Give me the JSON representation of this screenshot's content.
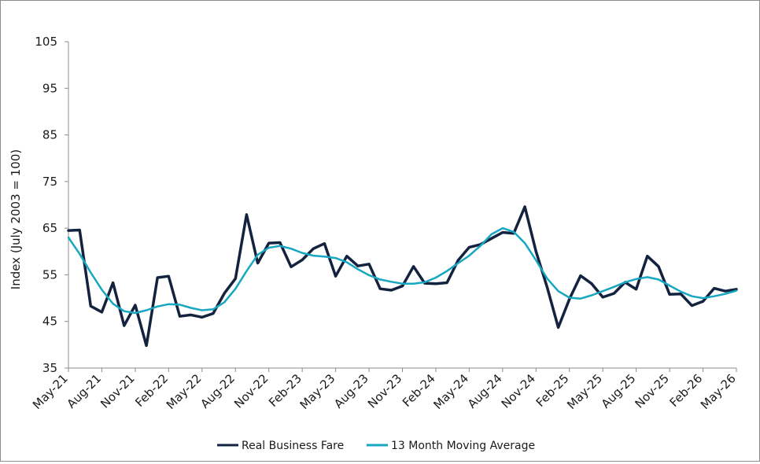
{
  "chart_data": {
    "type": "line",
    "title": "",
    "xlabel": "",
    "ylabel": "Index (July 2003 = 100)",
    "ylim": [
      35,
      105
    ],
    "y_ticks": [
      35,
      45,
      55,
      65,
      75,
      85,
      95,
      105
    ],
    "x_ticks": [
      "May-21",
      "Aug-21",
      "Nov-21",
      "Feb-22",
      "May-22",
      "Aug-22",
      "Nov-22",
      "Feb-23",
      "May-23",
      "Aug-23",
      "Nov-23",
      "Feb-24",
      "May-24",
      "Aug-24",
      "Nov-24",
      "Feb-25",
      "May-25",
      "Aug-25",
      "Nov-25",
      "Feb-26",
      "May-26"
    ],
    "grid": false,
    "legend_position": "bottom",
    "categories": [
      "May-21",
      "Jun-21",
      "Jul-21",
      "Aug-21",
      "Sep-21",
      "Oct-21",
      "Nov-21",
      "Dec-21",
      "Jan-22",
      "Feb-22",
      "Mar-22",
      "Apr-22",
      "May-22",
      "Jun-22",
      "Jul-22",
      "Aug-22",
      "Sep-22",
      "Oct-22",
      "Nov-22",
      "Dec-22",
      "Jan-23",
      "Feb-23",
      "Mar-23",
      "Apr-23",
      "May-23",
      "Jun-23",
      "Jul-23",
      "Aug-23",
      "Sep-23",
      "Oct-23",
      "Nov-23",
      "Dec-23",
      "Jan-24",
      "Feb-24",
      "Mar-24",
      "Apr-24",
      "May-24",
      "Jun-24",
      "Jul-24",
      "Aug-24",
      "Sep-24",
      "Oct-24",
      "Nov-24",
      "Dec-24",
      "Jan-25",
      "Feb-25",
      "Mar-25",
      "Apr-25",
      "May-25",
      "Jun-25",
      "Jul-25",
      "Aug-25",
      "Sep-25",
      "Oct-25",
      "Nov-25",
      "Dec-25",
      "Jan-26",
      "Feb-26",
      "Mar-26",
      "Apr-26",
      "May-26"
    ],
    "series": [
      {
        "name": "Real Business Fare",
        "color": "#13233f",
        "values": [
          64.5,
          64.6,
          48.3,
          47.0,
          53.3,
          44.1,
          48.5,
          39.8,
          54.4,
          54.7,
          46.1,
          46.4,
          45.9,
          46.7,
          51.0,
          54.2,
          67.9,
          57.5,
          61.8,
          61.9,
          56.7,
          58.2,
          60.6,
          61.7,
          54.7,
          59.0,
          56.9,
          57.3,
          52.0,
          51.7,
          52.6,
          56.8,
          53.2,
          53.1,
          53.3,
          58.1,
          60.9,
          61.5,
          62.8,
          64.1,
          63.9,
          69.6,
          60.0,
          52.3,
          43.7,
          49.8,
          54.8,
          53.1,
          50.2,
          51.0,
          53.4,
          51.9,
          59.0,
          56.8,
          50.8,
          50.9,
          48.4,
          49.3,
          52.1,
          51.5,
          51.9
        ]
      },
      {
        "name": "13 Month Moving Average",
        "color": "#17a7c0",
        "values": [
          63.0,
          59.5,
          55.5,
          51.8,
          48.8,
          47.2,
          46.8,
          47.4,
          48.2,
          48.7,
          48.6,
          47.9,
          47.4,
          47.6,
          49.1,
          52.0,
          55.8,
          59.3,
          60.8,
          61.2,
          60.6,
          59.7,
          59.1,
          58.9,
          58.6,
          57.7,
          56.2,
          54.9,
          54.0,
          53.5,
          53.1,
          53.1,
          53.4,
          54.4,
          55.8,
          57.5,
          59.1,
          61.2,
          63.7,
          65.0,
          64.2,
          61.8,
          58.1,
          54.2,
          51.5,
          50.1,
          49.9,
          50.6,
          51.5,
          52.4,
          53.4,
          54.1,
          54.5,
          54.0,
          52.7,
          51.4,
          50.4,
          50.0,
          50.4,
          50.9,
          51.6
        ]
      }
    ]
  }
}
